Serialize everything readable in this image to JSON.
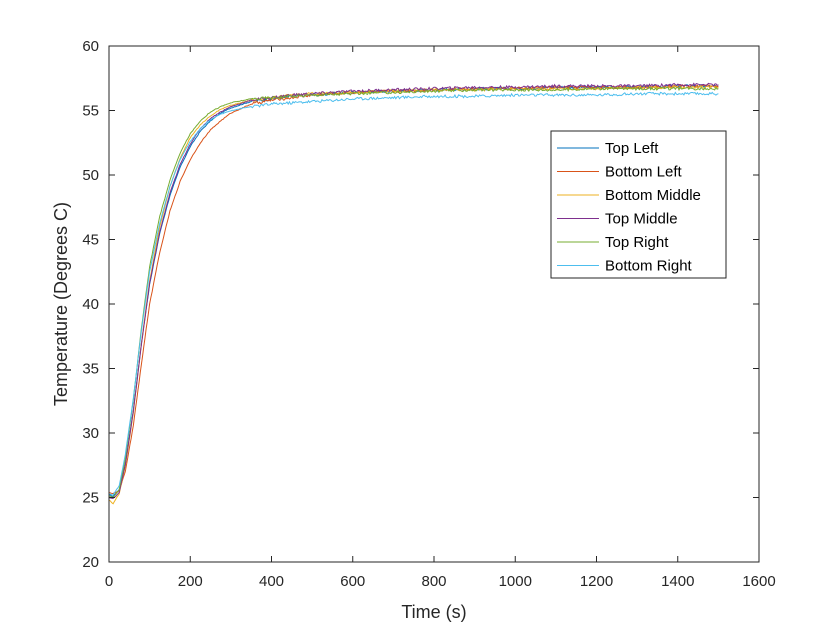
{
  "chart_data": {
    "type": "line",
    "title": "",
    "xlabel": "Time (s)",
    "ylabel": "Temperature (Degrees C)",
    "xlim": [
      0,
      1600
    ],
    "ylim": [
      20,
      60
    ],
    "xticks": [
      0,
      200,
      400,
      600,
      800,
      1000,
      1200,
      1400,
      1600
    ],
    "yticks": [
      20,
      25,
      30,
      35,
      40,
      45,
      50,
      55,
      60
    ],
    "grid": false,
    "legend_position": "upper-right (inside)",
    "x": [
      0,
      10,
      25,
      40,
      60,
      80,
      100,
      125,
      150,
      175,
      200,
      225,
      250,
      275,
      300,
      350,
      400,
      450,
      500,
      600,
      700,
      800,
      900,
      1000,
      1100,
      1200,
      1300,
      1400,
      1500
    ],
    "series": [
      {
        "name": "Top Left",
        "color": "#0072BD",
        "values": [
          25.2,
          25.1,
          25.6,
          27.6,
          31.8,
          37.0,
          41.5,
          45.5,
          48.4,
          50.6,
          52.2,
          53.4,
          54.2,
          54.8,
          55.2,
          55.7,
          55.9,
          56.1,
          56.2,
          56.4,
          56.5,
          56.6,
          56.7,
          56.7,
          56.8,
          56.8,
          56.8,
          56.9,
          56.9
        ]
      },
      {
        "name": "Bottom Left",
        "color": "#D95319",
        "values": [
          25.4,
          25.3,
          25.5,
          27.0,
          30.6,
          35.4,
          40.0,
          44.0,
          47.2,
          49.5,
          51.2,
          52.5,
          53.5,
          54.2,
          54.8,
          55.5,
          55.8,
          56.0,
          56.2,
          56.4,
          56.5,
          56.6,
          56.7,
          56.7,
          56.8,
          56.8,
          56.8,
          56.9,
          56.9
        ]
      },
      {
        "name": "Bottom Middle",
        "color": "#EDB120",
        "values": [
          24.8,
          24.5,
          25.3,
          27.4,
          31.6,
          37.0,
          41.8,
          46.0,
          49.1,
          51.3,
          52.9,
          53.9,
          54.6,
          55.1,
          55.4,
          55.8,
          56.0,
          56.2,
          56.3,
          56.4,
          56.5,
          56.6,
          56.6,
          56.7,
          56.7,
          56.7,
          56.8,
          56.8,
          56.8
        ]
      },
      {
        "name": "Top Middle",
        "color": "#7E2F8E",
        "values": [
          25.0,
          24.9,
          25.4,
          27.5,
          31.7,
          36.9,
          41.6,
          45.6,
          48.6,
          50.8,
          52.4,
          53.6,
          54.4,
          54.9,
          55.3,
          55.8,
          56.0,
          56.2,
          56.3,
          56.5,
          56.6,
          56.7,
          56.8,
          56.8,
          56.9,
          56.9,
          56.9,
          57.0,
          57.0
        ]
      },
      {
        "name": "Top Right",
        "color": "#77AC30",
        "values": [
          25.1,
          25.0,
          25.6,
          28.0,
          32.6,
          38.2,
          42.9,
          46.8,
          49.6,
          51.7,
          53.2,
          54.2,
          54.9,
          55.3,
          55.6,
          55.9,
          56.0,
          56.1,
          56.2,
          56.3,
          56.4,
          56.5,
          56.6,
          56.6,
          56.6,
          56.7,
          56.7,
          56.7,
          56.7
        ]
      },
      {
        "name": "Bottom Right",
        "color": "#4DBEEE",
        "values": [
          25.3,
          25.2,
          25.9,
          28.3,
          32.7,
          38.0,
          42.5,
          46.3,
          49.1,
          51.2,
          52.6,
          53.6,
          54.3,
          54.7,
          55.0,
          55.3,
          55.5,
          55.6,
          55.7,
          55.9,
          56.0,
          56.1,
          56.1,
          56.2,
          56.2,
          56.2,
          56.3,
          56.3,
          56.3
        ]
      }
    ]
  }
}
